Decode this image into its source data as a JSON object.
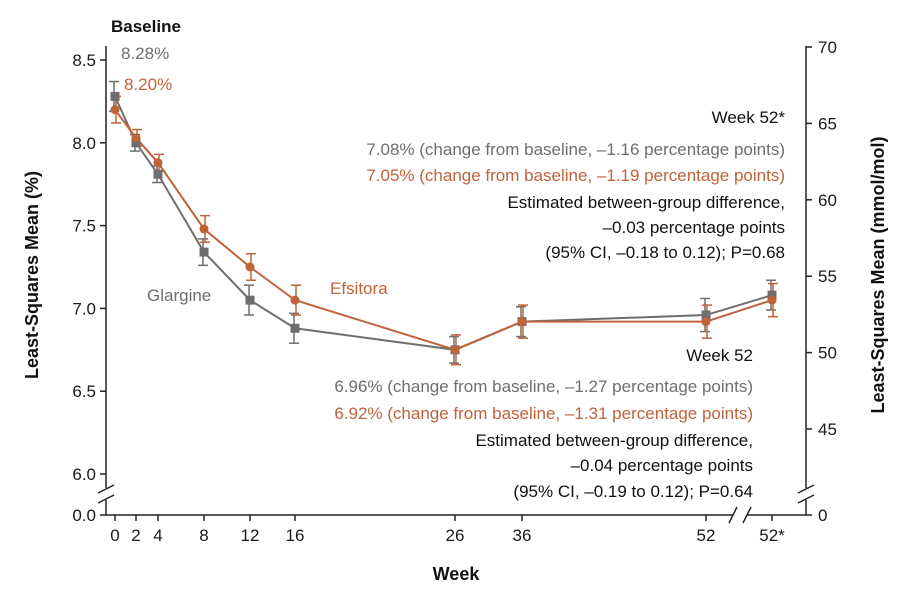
{
  "colors": {
    "glargine": "#6e6e6e",
    "efsitora": "#c0623a",
    "text": "#111111",
    "axis": "#222222"
  },
  "chart_data": {
    "type": "line",
    "xlabel": "Week",
    "ylabel": "Least-Squares Mean (%)",
    "y2label": "Least-Squares Mean (mmol/mol)",
    "x_ticks": [
      "0",
      "2",
      "4",
      "8",
      "12",
      "16",
      "26",
      "36",
      "52",
      "52*"
    ],
    "y_ticks": [
      "6.0",
      "6.5",
      "7.0",
      "7.5",
      "8.0",
      "8.5"
    ],
    "y_zero_label": "0.0",
    "y2_ticks": [
      "45",
      "50",
      "55",
      "60",
      "65",
      "70"
    ],
    "y2_zero_label": "0",
    "ylim": [
      6.0,
      8.55
    ],
    "series": [
      {
        "name": "Glargine",
        "color": "#6e6e6e",
        "marker": "square",
        "x": [
          "0",
          "2",
          "4",
          "8",
          "12",
          "16",
          "26",
          "36",
          "52",
          "52*"
        ],
        "values": [
          8.28,
          8.0,
          7.81,
          7.34,
          7.05,
          6.88,
          6.75,
          6.92,
          6.96,
          7.08
        ],
        "err": [
          0.09,
          0.05,
          0.05,
          0.08,
          0.09,
          0.09,
          0.08,
          0.09,
          0.1,
          0.09
        ]
      },
      {
        "name": "Efsitora",
        "color": "#c0623a",
        "marker": "circle",
        "x": [
          "0",
          "2",
          "4",
          "8",
          "12",
          "16",
          "26",
          "36",
          "52",
          "52*"
        ],
        "values": [
          8.2,
          8.03,
          7.88,
          7.48,
          7.25,
          7.05,
          6.75,
          6.92,
          6.92,
          7.05
        ],
        "err": [
          0.08,
          0.05,
          0.05,
          0.08,
          0.08,
          0.09,
          0.09,
          0.1,
          0.1,
          0.1
        ]
      }
    ],
    "annotations": {
      "baseline_title": "Baseline",
      "baseline_glargine": "8.28%",
      "baseline_efsitora": "8.20%",
      "week52star_title": "Week 52*",
      "week52star_glargine": "7.08% (change from baseline, –1.16 percentage points)",
      "week52star_efsitora": "7.05% (change from baseline, –1.19 percentage points)",
      "week52star_diff1": "Estimated between-group difference,",
      "week52star_diff2": "–0.03 percentage points",
      "week52star_diff3": "(95% CI, –0.18 to 0.12); P=0.68",
      "week52_title": "Week 52",
      "week52_glargine": "6.96% (change from baseline, –1.27 percentage points)",
      "week52_efsitora": "6.92% (change from baseline, –1.31 percentage points)",
      "week52_diff1": "Estimated between-group difference,",
      "week52_diff2": "–0.04 percentage points",
      "week52_diff3": "(95% CI, –0.19 to 0.12); P=0.64"
    }
  }
}
